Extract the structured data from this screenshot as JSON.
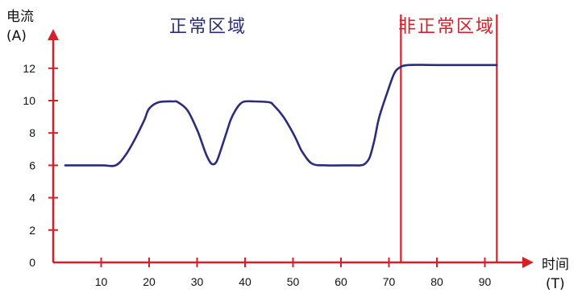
{
  "chart_data": {
    "type": "line",
    "ylabel": "电流",
    "ylabel_unit": "(A)",
    "xlabel": "时间",
    "xlabel_unit": "(T)",
    "x_ticks": [
      10,
      20,
      30,
      40,
      50,
      60,
      70,
      80,
      90
    ],
    "y_ticks": [
      0,
      2,
      4,
      6,
      8,
      10,
      12
    ],
    "xlim": [
      0,
      100
    ],
    "ylim": [
      0,
      14
    ],
    "grid": false,
    "series": [
      {
        "color": "#2b2c7a",
        "x": [
          2.5,
          10,
          13,
          15,
          17,
          19,
          20,
          22,
          25,
          26,
          28,
          30,
          31,
          32,
          33,
          34,
          35,
          36,
          37,
          38,
          39,
          40,
          42,
          45,
          46,
          48,
          50,
          51,
          52,
          54,
          57,
          62,
          64,
          65,
          66,
          67,
          68,
          70,
          71,
          72,
          74,
          80,
          92.5
        ],
        "y": [
          6,
          6,
          6,
          6.6,
          7.6,
          8.8,
          9.5,
          9.9,
          9.95,
          9.9,
          9.4,
          8.2,
          7.4,
          6.6,
          6.1,
          6.2,
          7.0,
          7.9,
          8.8,
          9.4,
          9.8,
          9.95,
          9.95,
          9.9,
          9.7,
          9.0,
          8.0,
          7.4,
          6.8,
          6.1,
          6.0,
          6.0,
          6.0,
          6.1,
          6.5,
          7.6,
          9.0,
          10.8,
          11.6,
          12.0,
          12.2,
          12.2,
          12.2
        ]
      }
    ],
    "regions": [
      {
        "label": "正常区域",
        "color": "#2b2c7a"
      },
      {
        "label": "非正常区域",
        "color": "#d4202a",
        "x_start": 72.5,
        "x_end": 92.5
      }
    ],
    "axis_color": "#d4202a"
  }
}
